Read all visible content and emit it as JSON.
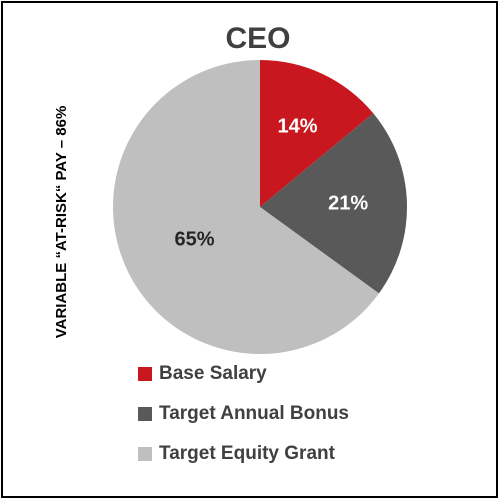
{
  "chart_data": {
    "type": "pie",
    "title": "CEO",
    "side_label": "VARIABLE “AT-RISK“ PAY – 86%",
    "categories": [
      "Base Salary",
      "Target Annual Bonus",
      "Target Equity Grant"
    ],
    "values": [
      14,
      21,
      65
    ],
    "value_labels": [
      "14%",
      "21%",
      "65%"
    ],
    "colors": [
      "#c8171e",
      "#595959",
      "#bfbfbf"
    ]
  }
}
